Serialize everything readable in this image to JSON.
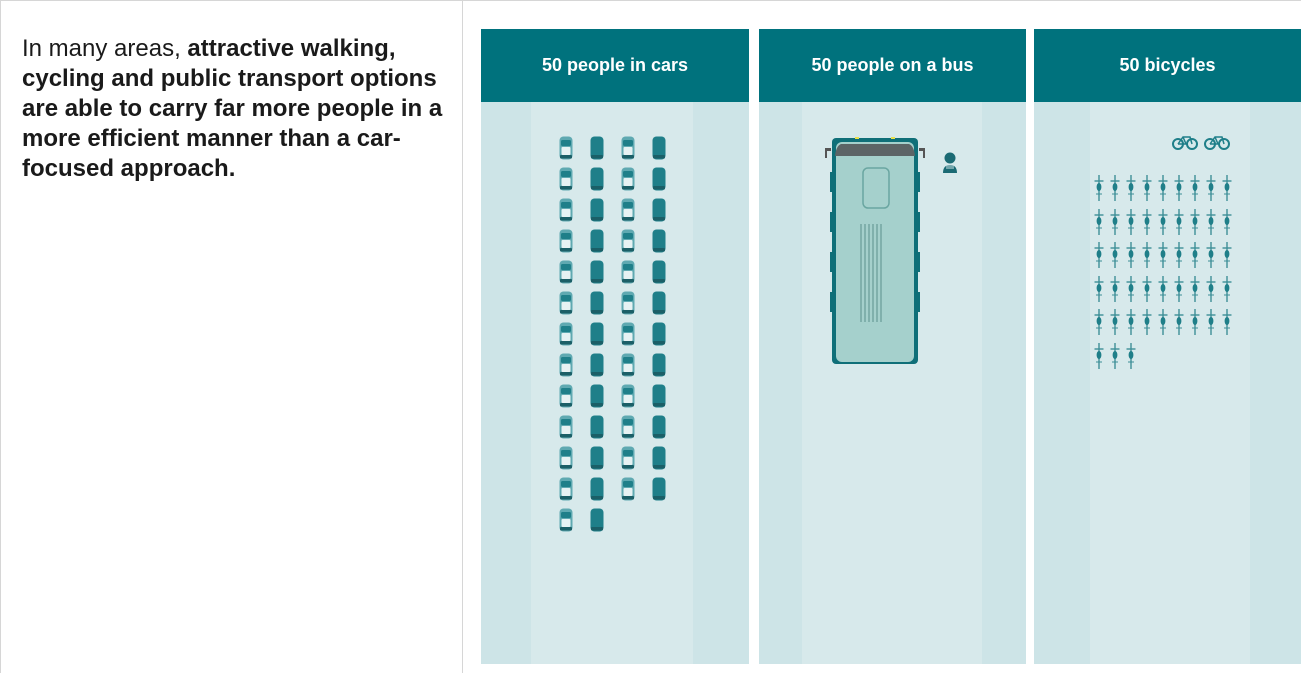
{
  "text": {
    "intro": "In many areas, ",
    "bold": "attractive walking, cycling and public transport options are able to carry far more people in a more efficient manner than a car-focused approach."
  },
  "panels": [
    {
      "title": "50 people in cars",
      "count": 50,
      "icon": "car-icon"
    },
    {
      "title": "50 people on a bus",
      "count": 50,
      "icon": "bus-icon"
    },
    {
      "title": "50 bicycles",
      "count": 50,
      "icon": "bicycle-icon"
    }
  ],
  "colors": {
    "header": "#00727d",
    "panel_bg": "#cde4e7",
    "vehicle": "#1f7f89",
    "vehicle_light": "#5fa9b1"
  }
}
